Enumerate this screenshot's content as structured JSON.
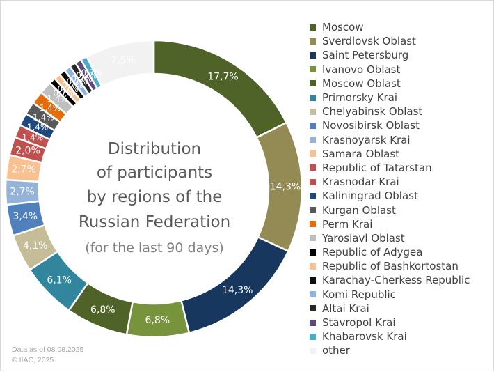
{
  "chart_data": {
    "type": "pie",
    "donut": true,
    "title_lines": [
      "Distribution",
      "of participants",
      "by regions of the",
      "Russian Federation"
    ],
    "subtitle": "(for the last 90 days)",
    "legend_position": "right",
    "value_suffix": "%",
    "slices": [
      {
        "label": "Moscow",
        "value": 17.7,
        "display": "17,7%",
        "color": "#4f6228"
      },
      {
        "label": "Sverdlovsk Oblast",
        "value": 14.3,
        "display": "14,3%",
        "color": "#948a54"
      },
      {
        "label": "Saint Petersburg",
        "value": 14.3,
        "display": "14,3%",
        "color": "#17375e"
      },
      {
        "label": "Ivanovo Oblast",
        "value": 6.8,
        "display": "6,8%",
        "color": "#77933c"
      },
      {
        "label": "Moscow Oblast",
        "value": 6.8,
        "display": "6,8%",
        "color": "#4f6228"
      },
      {
        "label": "Primorsky Krai",
        "value": 6.1,
        "display": "6,1%",
        "color": "#31859c"
      },
      {
        "label": "Chelyabinsk Oblast",
        "value": 4.1,
        "display": "4,1%",
        "color": "#c4bd97"
      },
      {
        "label": "Novosibirsk Oblast",
        "value": 3.4,
        "display": "3,4%",
        "color": "#4f81bd"
      },
      {
        "label": "Krasnoyarsk Krai",
        "value": 2.7,
        "display": "2,7%",
        "color": "#95b3d7"
      },
      {
        "label": "Samara Oblast",
        "value": 2.7,
        "display": "2,7%",
        "color": "#fac090"
      },
      {
        "label": "Republic of Tatarstan",
        "value": 2.0,
        "display": "2,0%",
        "color": "#c0504d"
      },
      {
        "label": "Krasnodar Krai",
        "value": 1.4,
        "display": "1,4%",
        "color": "#c0504d"
      },
      {
        "label": "Kaliningrad Oblast",
        "value": 1.4,
        "display": "1,4%",
        "color": "#1f497d"
      },
      {
        "label": "Kurgan Oblast",
        "value": 1.4,
        "display": "1,4%",
        "color": "#595959"
      },
      {
        "label": "Perm Krai",
        "value": 1.4,
        "display": "1,4%",
        "color": "#e46c0a"
      },
      {
        "label": "Yaroslavl Oblast",
        "value": 1.4,
        "display": "1,4%",
        "color": "#bfbfbf"
      },
      {
        "label": "Republic of Adygea",
        "value": 0.7,
        "display": "0,7%",
        "color": "#000000"
      },
      {
        "label": "Republic of Bashkortostan",
        "value": 0.7,
        "display": "0,7%",
        "color": "#fac090"
      },
      {
        "label": "Karachay-Cherkess Republic",
        "value": 0.7,
        "display": "0,7%",
        "color": "#0d0d0d"
      },
      {
        "label": "Komi Republic",
        "value": 0.7,
        "display": "0,7%",
        "color": "#8eb4e3"
      },
      {
        "label": "Altai Krai",
        "value": 0.7,
        "display": "0,7%",
        "color": "#262626"
      },
      {
        "label": "Stavropol Krai",
        "value": 0.7,
        "display": "0,7%",
        "color": "#604a7b"
      },
      {
        "label": "Khabarovsk Krai",
        "value": 0.7,
        "display": "0,7%",
        "color": "#4bacc6"
      },
      {
        "label": "other",
        "value": 7.5,
        "display": "7,5%",
        "color": "#f2f2f2"
      }
    ]
  },
  "footnote": {
    "date_line": "Data as of 08.08.2025",
    "copyright_line": "© IIAC, 2025"
  }
}
